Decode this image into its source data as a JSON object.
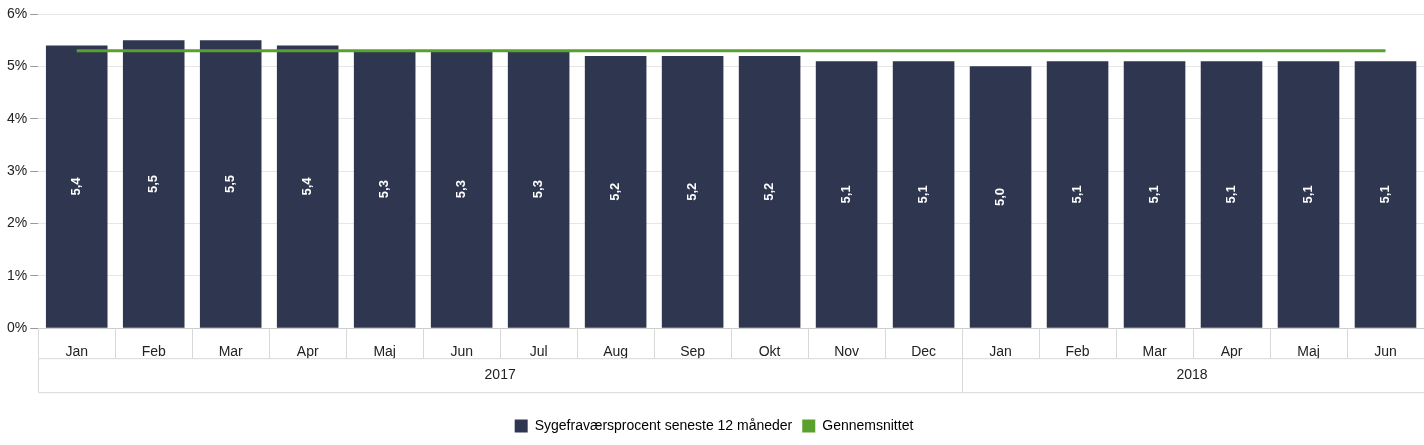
{
  "chart_data": {
    "type": "bar",
    "categories": [
      "Jan",
      "Feb",
      "Mar",
      "Apr",
      "Maj",
      "Jun",
      "Jul",
      "Aug",
      "Sep",
      "Okt",
      "Nov",
      "Dec",
      "Jan",
      "Feb",
      "Mar",
      "Apr",
      "Maj",
      "Jun"
    ],
    "series": [
      {
        "name": "Sygefraværsprocent seneste 12 måneder",
        "color": "#2e3650",
        "values": [
          5.4,
          5.5,
          5.5,
          5.4,
          5.3,
          5.3,
          5.3,
          5.2,
          5.2,
          5.2,
          5.1,
          5.1,
          5.0,
          5.1,
          5.1,
          5.1,
          5.1,
          5.1
        ],
        "value_labels": [
          "5,4",
          "5,5",
          "5,5",
          "5,4",
          "5,3",
          "5,3",
          "5,3",
          "5,2",
          "5,2",
          "5,2",
          "5,1",
          "5,1",
          "5,0",
          "5,1",
          "5,1",
          "5,1",
          "5,1",
          "5,1"
        ]
      },
      {
        "name": "Gennemsnittet",
        "type": "line",
        "color": "#5aa02c",
        "values": [
          5.3,
          5.3,
          5.3,
          5.3,
          5.3,
          5.3,
          5.3,
          5.3,
          5.3,
          5.3,
          5.3,
          5.3,
          5.3,
          5.3,
          5.3,
          5.3,
          5.3,
          5.3
        ]
      }
    ],
    "ylim": [
      0,
      6
    ],
    "yticks": [
      {
        "value": 0,
        "label": "0%"
      },
      {
        "value": 1,
        "label": "1%"
      },
      {
        "value": 2,
        "label": "2%"
      },
      {
        "value": 3,
        "label": "3%"
      },
      {
        "value": 4,
        "label": "4%"
      },
      {
        "value": 5,
        "label": "5%"
      },
      {
        "value": 6,
        "label": "6%"
      }
    ],
    "annotations": [
      "2017",
      "2018"
    ],
    "grid": "y",
    "legend": "bottom",
    "marker": "none"
  }
}
